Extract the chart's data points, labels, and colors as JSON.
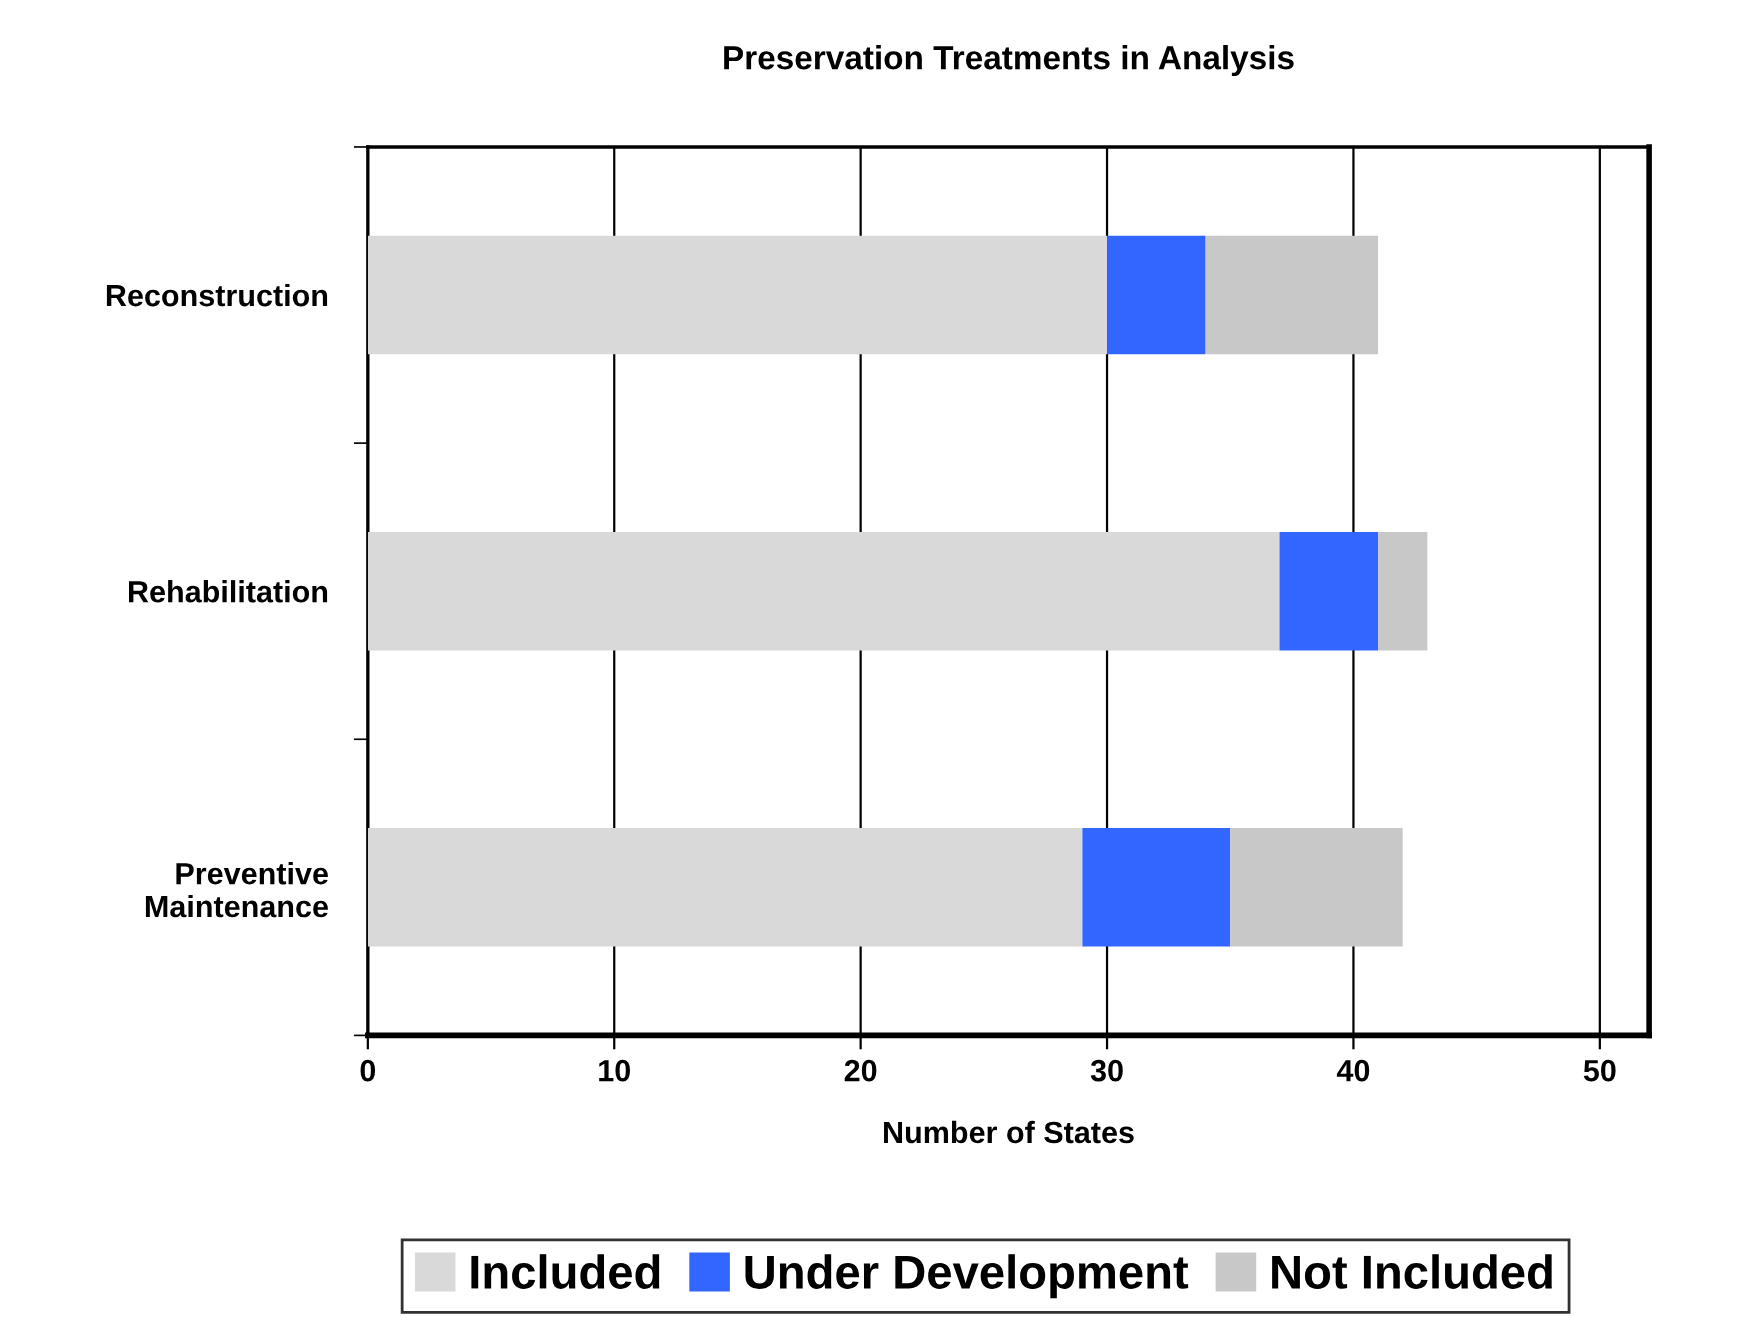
{
  "chart_data": {
    "type": "bar",
    "orientation": "horizontal",
    "stacked": true,
    "title": "Preservation Treatments in Analysis",
    "xlabel": "Number of States",
    "categories": [
      "Reconstruction",
      "Rehabilitation",
      "Preventive\nMaintenance"
    ],
    "series": [
      {
        "name": "Included",
        "color": "#d9d9d9",
        "values": [
          30,
          37,
          29
        ]
      },
      {
        "name": "Under Development",
        "color": "#3366ff",
        "values": [
          4,
          4,
          6
        ]
      },
      {
        "name": "Not Included",
        "color": "#c8c8c8",
        "values": [
          7,
          2,
          7
        ]
      }
    ],
    "xlim": [
      0,
      52
    ],
    "xticks": [
      0,
      10,
      20,
      30,
      40,
      50
    ],
    "grid": "x",
    "legend": "bottom"
  }
}
